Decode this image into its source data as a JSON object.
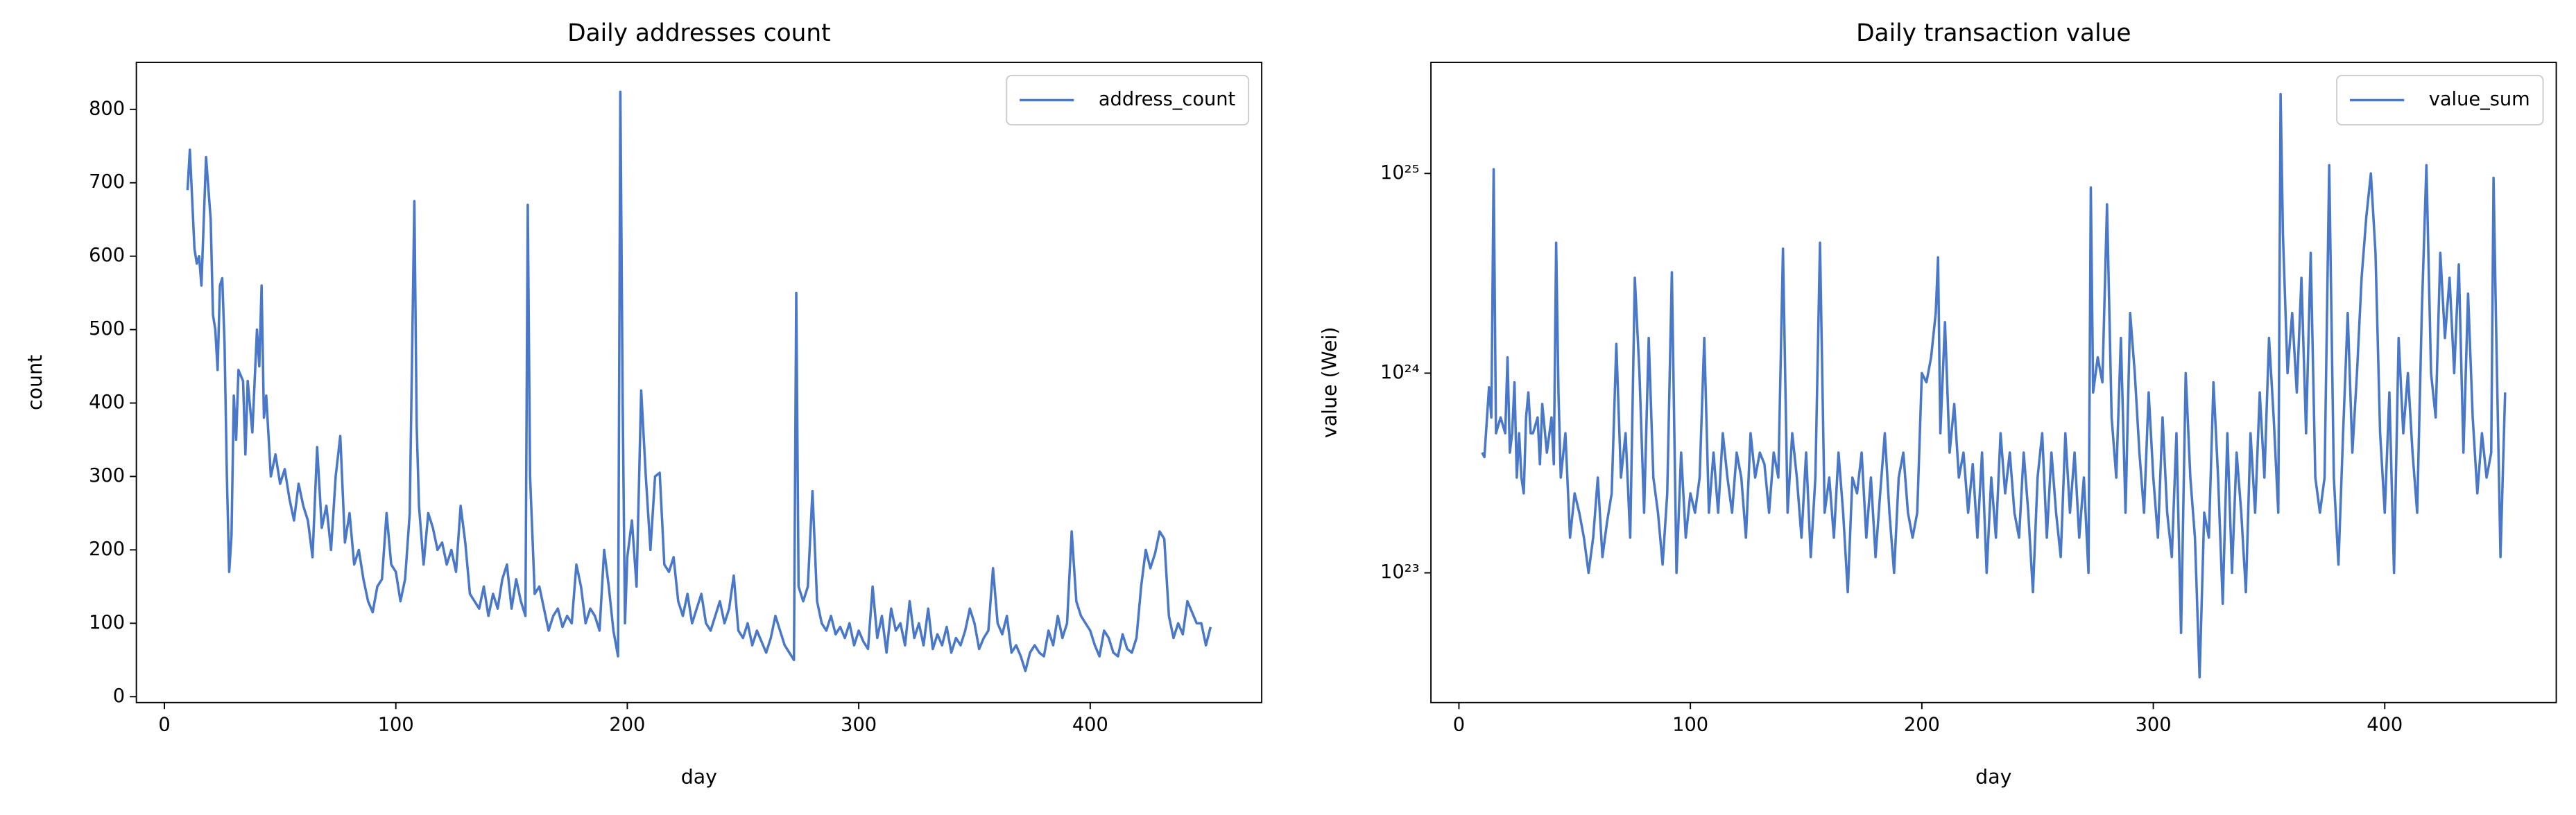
{
  "chart_data": [
    {
      "type": "line",
      "title": "Daily addresses count",
      "xlabel": "day",
      "ylabel": "count",
      "xlim": [
        -12.1,
        474.1
      ],
      "xticks": [
        0,
        100,
        200,
        300,
        400
      ],
      "ylim": [
        -8,
        864
      ],
      "yticks": [
        0,
        100,
        200,
        300,
        400,
        500,
        600,
        700,
        800
      ],
      "log_y": false,
      "legend": "upper right",
      "x": [
        10,
        11,
        13,
        14,
        15,
        16,
        18,
        20,
        21,
        22,
        23,
        24,
        25,
        26,
        27,
        28,
        29,
        30,
        31,
        32,
        34,
        35,
        36,
        38,
        40,
        41,
        42,
        43,
        44,
        46,
        48,
        50,
        52,
        54,
        56,
        58,
        60,
        62,
        64,
        66,
        68,
        70,
        72,
        74,
        76,
        78,
        80,
        82,
        84,
        86,
        88,
        90,
        92,
        94,
        96,
        98,
        100,
        102,
        104,
        106,
        108,
        109,
        110,
        112,
        114,
        116,
        118,
        120,
        122,
        124,
        126,
        128,
        130,
        132,
        134,
        136,
        138,
        140,
        142,
        144,
        146,
        148,
        150,
        152,
        154,
        156,
        157,
        158,
        160,
        162,
        164,
        166,
        168,
        170,
        172,
        174,
        176,
        178,
        180,
        182,
        184,
        186,
        188,
        190,
        192,
        194,
        196,
        197,
        198,
        199,
        200,
        202,
        204,
        206,
        208,
        210,
        212,
        214,
        216,
        218,
        220,
        222,
        224,
        226,
        228,
        230,
        232,
        234,
        236,
        238,
        240,
        242,
        244,
        246,
        248,
        250,
        252,
        254,
        256,
        258,
        260,
        262,
        264,
        266,
        268,
        270,
        272,
        273,
        274,
        276,
        278,
        280,
        282,
        284,
        286,
        288,
        290,
        292,
        294,
        296,
        298,
        300,
        302,
        304,
        306,
        308,
        310,
        312,
        314,
        316,
        318,
        320,
        322,
        324,
        326,
        328,
        330,
        332,
        334,
        336,
        338,
        340,
        342,
        344,
        346,
        348,
        350,
        352,
        354,
        356,
        358,
        360,
        362,
        364,
        366,
        368,
        370,
        372,
        374,
        376,
        378,
        380,
        382,
        384,
        386,
        388,
        390,
        392,
        394,
        396,
        398,
        400,
        402,
        404,
        406,
        408,
        410,
        412,
        414,
        416,
        418,
        420,
        422,
        424,
        426,
        428,
        430,
        432,
        434,
        436,
        438,
        440,
        442,
        444,
        446,
        448,
        450,
        452
      ],
      "series": [
        {
          "name": "address_count",
          "color": "#4a78c8",
          "values": [
            690,
            745,
            610,
            590,
            600,
            560,
            735,
            650,
            520,
            500,
            445,
            560,
            570,
            480,
            300,
            170,
            220,
            410,
            350,
            445,
            430,
            330,
            430,
            360,
            500,
            450,
            560,
            380,
            410,
            300,
            330,
            290,
            310,
            270,
            240,
            290,
            260,
            240,
            190,
            340,
            230,
            260,
            200,
            300,
            355,
            210,
            250,
            180,
            200,
            160,
            130,
            115,
            150,
            160,
            250,
            180,
            170,
            130,
            160,
            250,
            675,
            370,
            260,
            180,
            250,
            230,
            200,
            210,
            180,
            200,
            170,
            260,
            210,
            140,
            130,
            120,
            150,
            110,
            140,
            120,
            160,
            180,
            120,
            160,
            130,
            110,
            670,
            300,
            140,
            150,
            120,
            90,
            110,
            120,
            95,
            110,
            100,
            180,
            150,
            100,
            120,
            110,
            90,
            200,
            150,
            90,
            55,
            824,
            400,
            100,
            190,
            240,
            150,
            417,
            300,
            200,
            300,
            305,
            180,
            170,
            190,
            130,
            110,
            140,
            100,
            120,
            140,
            100,
            90,
            110,
            130,
            100,
            120,
            165,
            90,
            80,
            100,
            70,
            90,
            75,
            60,
            80,
            110,
            90,
            70,
            60,
            50,
            550,
            150,
            130,
            150,
            280,
            130,
            100,
            90,
            110,
            85,
            95,
            80,
            100,
            70,
            90,
            75,
            65,
            150,
            80,
            110,
            60,
            120,
            90,
            100,
            70,
            130,
            80,
            100,
            70,
            120,
            65,
            85,
            70,
            95,
            60,
            80,
            70,
            90,
            120,
            100,
            65,
            80,
            90,
            175,
            100,
            85,
            110,
            60,
            70,
            55,
            35,
            60,
            70,
            60,
            55,
            90,
            70,
            110,
            80,
            100,
            225,
            130,
            110,
            100,
            90,
            70,
            55,
            90,
            80,
            60,
            55,
            85,
            65,
            60,
            80,
            150,
            200,
            175,
            195,
            225,
            215,
            110,
            80,
            100,
            85,
            130,
            115,
            100,
            100,
            70,
            95
          ]
        }
      ]
    },
    {
      "type": "line",
      "title": "Daily transaction value",
      "xlabel": "day",
      "ylabel": "value (Wei)",
      "xlim": [
        -12.1,
        474.1
      ],
      "xticks": [
        0,
        100,
        200,
        300,
        400
      ],
      "ylim": [
        2.24e+22,
        3.6e+25
      ],
      "yticks": [
        {
          "value": 1e+23,
          "label": "10²³"
        },
        {
          "value": 1e+24,
          "label": "10²⁴"
        },
        {
          "value": 1e+25,
          "label": "10²⁵"
        }
      ],
      "log_y": true,
      "legend": "upper right",
      "x": [
        10,
        11,
        13,
        14,
        15,
        16,
        18,
        20,
        21,
        22,
        23,
        24,
        25,
        26,
        27,
        28,
        29,
        30,
        31,
        32,
        34,
        35,
        36,
        38,
        40,
        41,
        42,
        43,
        44,
        46,
        48,
        50,
        52,
        54,
        56,
        58,
        60,
        62,
        64,
        66,
        68,
        70,
        72,
        74,
        76,
        78,
        80,
        82,
        84,
        86,
        88,
        90,
        92,
        94,
        96,
        98,
        100,
        102,
        104,
        106,
        108,
        110,
        112,
        114,
        116,
        118,
        120,
        122,
        124,
        126,
        128,
        130,
        132,
        134,
        136,
        138,
        140,
        142,
        144,
        146,
        148,
        150,
        152,
        154,
        156,
        158,
        160,
        162,
        164,
        166,
        168,
        170,
        172,
        174,
        176,
        178,
        180,
        182,
        184,
        186,
        188,
        190,
        192,
        194,
        196,
        198,
        200,
        202,
        204,
        206,
        207,
        208,
        210,
        212,
        214,
        216,
        218,
        220,
        222,
        224,
        226,
        228,
        230,
        232,
        234,
        236,
        238,
        240,
        242,
        244,
        246,
        248,
        250,
        252,
        254,
        256,
        258,
        260,
        262,
        264,
        266,
        268,
        270,
        272,
        273,
        274,
        276,
        278,
        280,
        282,
        284,
        286,
        288,
        290,
        292,
        294,
        296,
        298,
        300,
        302,
        304,
        306,
        308,
        310,
        312,
        314,
        316,
        318,
        320,
        322,
        324,
        326,
        328,
        330,
        332,
        334,
        336,
        338,
        340,
        342,
        344,
        346,
        348,
        350,
        352,
        354,
        355,
        356,
        358,
        360,
        362,
        364,
        366,
        368,
        370,
        372,
        374,
        376,
        378,
        380,
        382,
        384,
        386,
        388,
        390,
        392,
        394,
        396,
        398,
        400,
        402,
        404,
        406,
        408,
        410,
        412,
        414,
        416,
        418,
        420,
        422,
        424,
        426,
        428,
        430,
        432,
        434,
        436,
        438,
        440,
        442,
        444,
        446,
        447,
        448,
        450,
        452
      ],
      "series": [
        {
          "name": "value_sum",
          "color": "#4a78c8",
          "values": [
            4e+23,
            3.8e+23,
            8.5e+23,
            6e+23,
            1.05e+25,
            5e+23,
            6e+23,
            5e+23,
            1.2e+24,
            4e+23,
            5e+23,
            9e+23,
            3e+23,
            5e+23,
            3e+23,
            2.5e+23,
            6e+23,
            8e+23,
            5e+23,
            5e+23,
            6e+23,
            3.5e+23,
            7e+23,
            4e+23,
            6e+23,
            3.5e+23,
            4.5e+24,
            8e+23,
            3e+23,
            5e+23,
            1.5e+23,
            2.5e+23,
            2e+23,
            1.5e+23,
            1e+23,
            1.5e+23,
            3e+23,
            1.2e+23,
            1.8e+23,
            2.5e+23,
            1.4e+24,
            3e+23,
            5e+23,
            1.5e+23,
            3e+24,
            1e+24,
            2e+23,
            1.5e+24,
            3e+23,
            2e+23,
            1.1e+23,
            2.5e+23,
            3.2e+24,
            1e+23,
            4e+23,
            1.5e+23,
            2.5e+23,
            2e+23,
            3e+23,
            1.5e+24,
            2e+23,
            4e+23,
            2e+23,
            5e+23,
            3e+23,
            2e+23,
            4e+23,
            3e+23,
            1.5e+23,
            5e+23,
            3e+23,
            4e+23,
            3.5e+23,
            2e+23,
            4e+23,
            3e+23,
            4.2e+24,
            2e+23,
            5e+23,
            3e+23,
            1.5e+23,
            4e+23,
            1.2e+23,
            3e+23,
            4.5e+24,
            2e+23,
            3e+23,
            1.5e+23,
            4e+23,
            2e+23,
            8e+22,
            3e+23,
            2.5e+23,
            4e+23,
            1.5e+23,
            3e+23,
            1.2e+23,
            2.5e+23,
            5e+23,
            2e+23,
            1e+23,
            3e+23,
            4e+23,
            2e+23,
            1.5e+23,
            2e+23,
            1e+24,
            9e+23,
            1.2e+24,
            2e+24,
            3.8e+24,
            5e+23,
            1.8e+24,
            4e+23,
            7e+23,
            3e+23,
            4e+23,
            2e+23,
            3.5e+23,
            1.5e+23,
            4e+23,
            1e+23,
            3e+23,
            1.5e+23,
            5e+23,
            2.5e+23,
            4e+23,
            2e+23,
            1.5e+23,
            4e+23,
            2e+23,
            8e+22,
            3e+23,
            5e+23,
            1.5e+23,
            4e+23,
            2e+23,
            1.2e+23,
            5e+23,
            2e+23,
            4e+23,
            1.5e+23,
            3e+23,
            1e+23,
            8.5e+24,
            8e+23,
            1.2e+24,
            9e+23,
            7e+24,
            6e+23,
            3e+23,
            1.5e+24,
            2e+23,
            2e+24,
            1e+24,
            4e+23,
            2e+23,
            8e+23,
            3e+23,
            1.5e+23,
            6e+23,
            2e+23,
            1.2e+23,
            5e+23,
            5e+22,
            1e+24,
            3e+23,
            1.5e+23,
            3e+22,
            2e+23,
            1.5e+23,
            9e+23,
            3e+23,
            7e+22,
            5e+23,
            1e+23,
            4e+23,
            2e+23,
            8e+22,
            5e+23,
            2e+23,
            8e+23,
            3e+23,
            1.5e+24,
            6e+23,
            2e+23,
            2.5e+25,
            5e+24,
            1e+24,
            2e+24,
            8e+23,
            3e+24,
            5e+23,
            4e+24,
            3e+23,
            2e+23,
            3e+23,
            1.1e+25,
            3e+23,
            1.1e+23,
            5e+23,
            2e+24,
            4e+23,
            1e+24,
            3e+24,
            6e+24,
            1e+25,
            4e+24,
            5e+23,
            2e+23,
            8e+23,
            1e+23,
            1.5e+24,
            5e+23,
            1e+24,
            4e+23,
            2e+23,
            2e+24,
            1.1e+25,
            1e+24,
            6e+23,
            4e+24,
            1.5e+24,
            3e+24,
            1e+24,
            3.5e+24,
            4e+23,
            2.5e+24,
            6e+23,
            2.5e+23,
            5e+23,
            3e+23,
            4e+23,
            9.5e+24,
            2e+24,
            1.2e+23,
            8e+23
          ]
        }
      ]
    }
  ]
}
